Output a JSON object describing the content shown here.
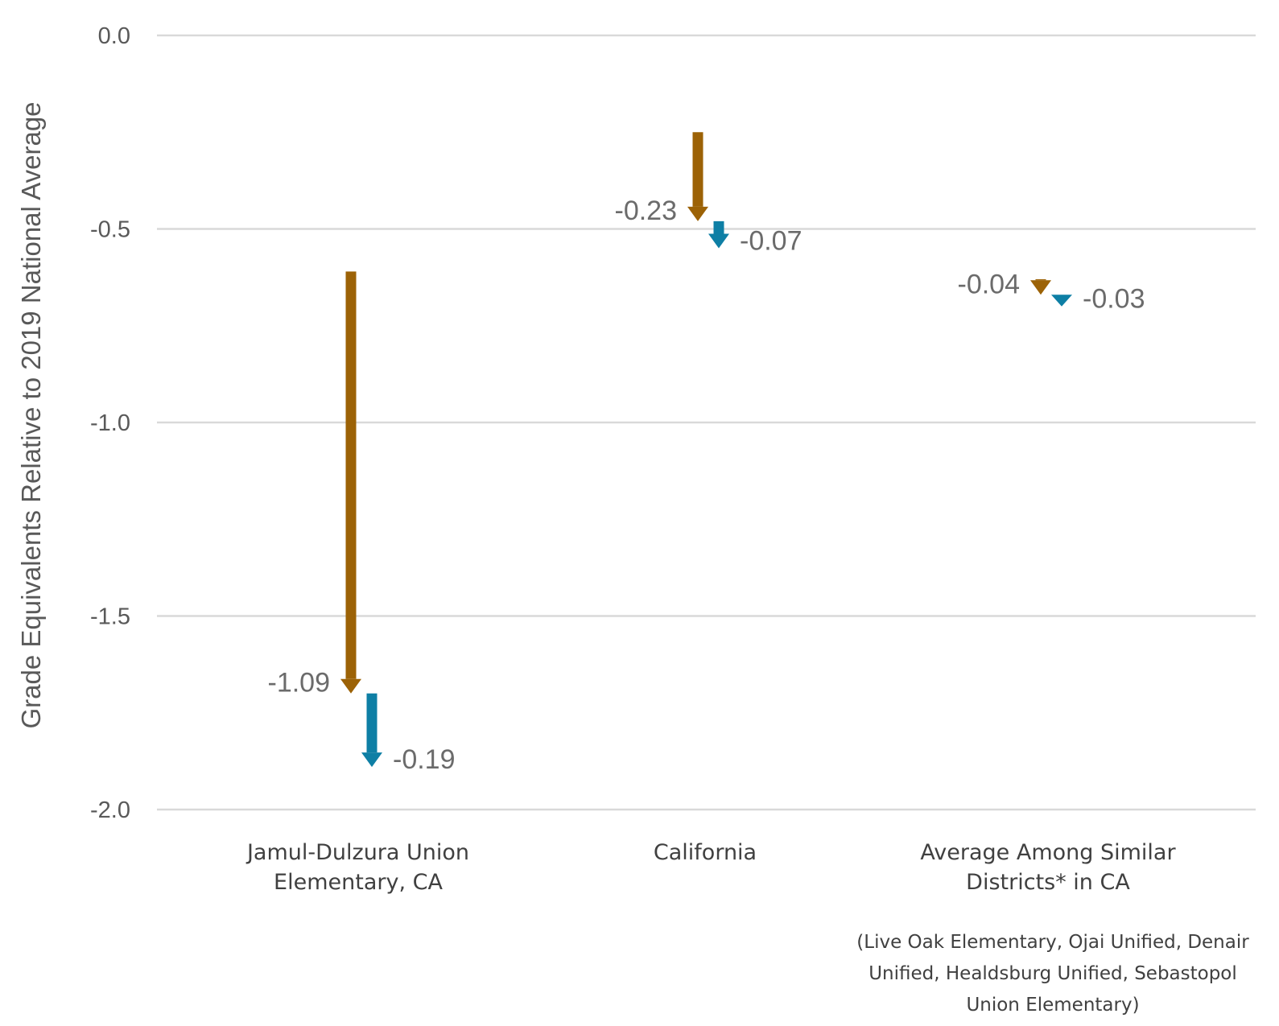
{
  "chart_data": {
    "type": "waterfall-arrows",
    "ylabel": "Grade Equivalents Relative to 2019 National Average",
    "ylim": [
      -2.0,
      0.0
    ],
    "yticks": [
      0.0,
      -0.5,
      -1.0,
      -1.5,
      -2.0
    ],
    "ytick_labels": [
      "0.0",
      "-0.5",
      "-1.0",
      "-1.5",
      "-2.0"
    ],
    "grid": true,
    "categories": [
      {
        "label_lines": [
          "Jamul-Dulzura Union",
          "Elementary, CA"
        ],
        "arrows": [
          {
            "start": -0.61,
            "end": -1.7,
            "change": -1.09,
            "label": "-1.09",
            "color": "#9C6206"
          },
          {
            "start": -1.7,
            "end": -1.89,
            "change": -0.19,
            "label": "-0.19",
            "color": "#0E7FA5"
          }
        ]
      },
      {
        "label_lines": [
          "California"
        ],
        "arrows": [
          {
            "start": -0.25,
            "end": -0.48,
            "change": -0.23,
            "label": "-0.23",
            "color": "#9C6206"
          },
          {
            "start": -0.48,
            "end": -0.55,
            "change": -0.07,
            "label": "-0.07",
            "color": "#0E7FA5"
          }
        ]
      },
      {
        "label_lines": [
          "Average Among Similar",
          "Districts* in CA"
        ],
        "arrows": [
          {
            "start": -0.63,
            "end": -0.67,
            "change": -0.04,
            "label": "-0.04",
            "color": "#9C6206"
          },
          {
            "start": -0.67,
            "end": -0.7,
            "change": -0.03,
            "label": "-0.03",
            "color": "#0E7FA5"
          }
        ]
      }
    ],
    "footnote_lines": [
      "(Live Oak Elementary, Ojai Unified, Denair",
      "Unified, Healdsburg Unified, Sebastopol",
      "Union Elementary)"
    ]
  }
}
